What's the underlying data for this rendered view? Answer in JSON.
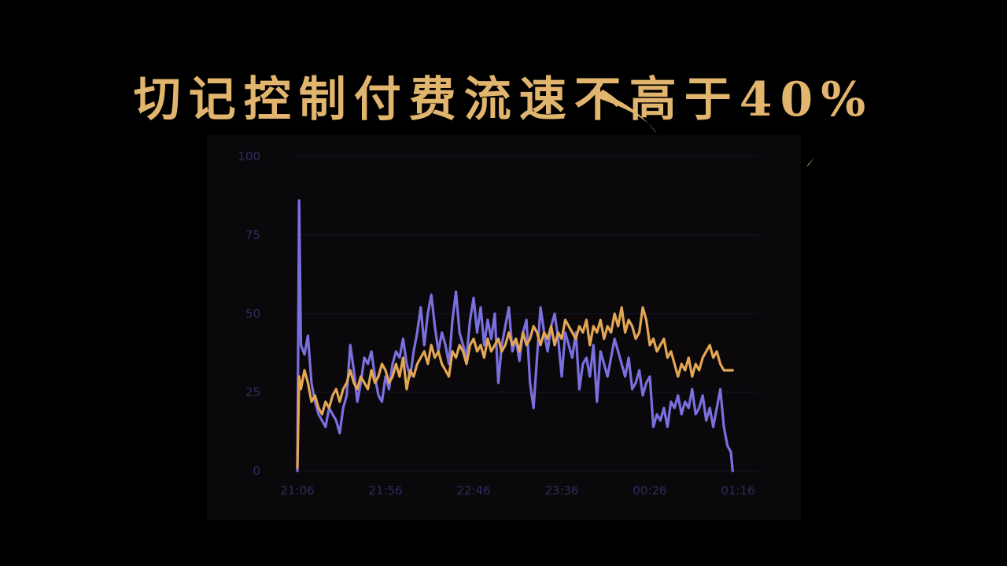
{
  "headline": "切记控制付费流速不高于40%",
  "colors": {
    "headline": "#e2b56e",
    "series_a": "#7a70de",
    "series_b": "#e3a755",
    "axis_text": "#2a2d5a"
  },
  "chart_data": {
    "type": "line",
    "title": "",
    "xlabel": "",
    "ylabel": "",
    "ylim": [
      0,
      100
    ],
    "y_ticks": [
      0,
      25,
      50,
      75,
      100
    ],
    "x_ticks": [
      "21:06",
      "21:56",
      "22:46",
      "23:36",
      "00:26",
      "01:16"
    ],
    "grid": true,
    "legend": "none",
    "series": [
      {
        "color": "#7a70de",
        "points": [
          [
            "21:06",
            0
          ],
          [
            "21:07",
            86
          ],
          [
            "21:08",
            40
          ],
          [
            "21:10",
            37
          ],
          [
            "21:12",
            43
          ],
          [
            "21:14",
            28
          ],
          [
            "21:16",
            22
          ],
          [
            "21:18",
            18
          ],
          [
            "21:20",
            16
          ],
          [
            "21:22",
            14
          ],
          [
            "21:24",
            20
          ],
          [
            "21:26",
            18
          ],
          [
            "21:28",
            16
          ],
          [
            "21:30",
            12
          ],
          [
            "21:32",
            20
          ],
          [
            "21:34",
            24
          ],
          [
            "21:36",
            40
          ],
          [
            "21:38",
            32
          ],
          [
            "21:40",
            22
          ],
          [
            "21:42",
            28
          ],
          [
            "21:44",
            36
          ],
          [
            "21:46",
            34
          ],
          [
            "21:48",
            38
          ],
          [
            "21:50",
            30
          ],
          [
            "21:52",
            24
          ],
          [
            "21:54",
            22
          ],
          [
            "21:56",
            30
          ],
          [
            "21:58",
            26
          ],
          [
            "22:00",
            34
          ],
          [
            "22:02",
            38
          ],
          [
            "22:04",
            36
          ],
          [
            "22:06",
            42
          ],
          [
            "22:08",
            34
          ],
          [
            "22:10",
            30
          ],
          [
            "22:12",
            38
          ],
          [
            "22:14",
            44
          ],
          [
            "22:16",
            52
          ],
          [
            "22:18",
            40
          ],
          [
            "22:20",
            50
          ],
          [
            "22:22",
            56
          ],
          [
            "22:24",
            46
          ],
          [
            "22:26",
            38
          ],
          [
            "22:28",
            44
          ],
          [
            "22:30",
            40
          ],
          [
            "22:32",
            34
          ],
          [
            "22:34",
            48
          ],
          [
            "22:36",
            57
          ],
          [
            "22:38",
            44
          ],
          [
            "22:40",
            40
          ],
          [
            "22:42",
            36
          ],
          [
            "22:44",
            48
          ],
          [
            "22:46",
            55
          ],
          [
            "22:48",
            44
          ],
          [
            "22:50",
            52
          ],
          [
            "22:52",
            40
          ],
          [
            "22:54",
            48
          ],
          [
            "22:56",
            42
          ],
          [
            "22:58",
            50
          ],
          [
            "23:00",
            28
          ],
          [
            "23:02",
            40
          ],
          [
            "23:04",
            46
          ],
          [
            "23:06",
            52
          ],
          [
            "23:08",
            38
          ],
          [
            "23:10",
            42
          ],
          [
            "23:12",
            35
          ],
          [
            "23:14",
            44
          ],
          [
            "23:16",
            48
          ],
          [
            "23:18",
            28
          ],
          [
            "23:20",
            20
          ],
          [
            "23:22",
            36
          ],
          [
            "23:24",
            52
          ],
          [
            "23:26",
            44
          ],
          [
            "23:28",
            38
          ],
          [
            "23:30",
            46
          ],
          [
            "23:32",
            50
          ],
          [
            "23:34",
            42
          ],
          [
            "23:36",
            30
          ],
          [
            "23:38",
            44
          ],
          [
            "23:40",
            40
          ],
          [
            "23:42",
            36
          ],
          [
            "23:44",
            44
          ],
          [
            "23:46",
            26
          ],
          [
            "23:48",
            34
          ],
          [
            "23:50",
            36
          ],
          [
            "23:52",
            30
          ],
          [
            "23:54",
            40
          ],
          [
            "23:56",
            22
          ],
          [
            "23:58",
            38
          ],
          [
            "00:00",
            34
          ],
          [
            "00:02",
            30
          ],
          [
            "00:04",
            36
          ],
          [
            "00:06",
            42
          ],
          [
            "00:08",
            38
          ],
          [
            "00:10",
            34
          ],
          [
            "00:12",
            30
          ],
          [
            "00:14",
            36
          ],
          [
            "00:16",
            26
          ],
          [
            "00:18",
            28
          ],
          [
            "00:20",
            32
          ],
          [
            "00:22",
            24
          ],
          [
            "00:24",
            28
          ],
          [
            "00:26",
            30
          ],
          [
            "00:28",
            14
          ],
          [
            "00:30",
            18
          ],
          [
            "00:32",
            16
          ],
          [
            "00:34",
            20
          ],
          [
            "00:36",
            14
          ],
          [
            "00:38",
            22
          ],
          [
            "00:40",
            20
          ],
          [
            "00:42",
            24
          ],
          [
            "00:44",
            18
          ],
          [
            "00:46",
            22
          ],
          [
            "00:48",
            20
          ],
          [
            "00:50",
            26
          ],
          [
            "00:52",
            18
          ],
          [
            "00:54",
            20
          ],
          [
            "00:56",
            24
          ],
          [
            "00:58",
            16
          ],
          [
            "01:00",
            20
          ],
          [
            "01:02",
            14
          ],
          [
            "01:04",
            20
          ],
          [
            "01:06",
            26
          ],
          [
            "01:08",
            14
          ],
          [
            "01:10",
            8
          ],
          [
            "01:12",
            6
          ],
          [
            "01:13",
            0
          ]
        ]
      },
      {
        "color": "#e3a755",
        "points": [
          [
            "21:06",
            1
          ],
          [
            "21:07",
            30
          ],
          [
            "21:08",
            26
          ],
          [
            "21:10",
            32
          ],
          [
            "21:12",
            28
          ],
          [
            "21:14",
            22
          ],
          [
            "21:16",
            24
          ],
          [
            "21:18",
            20
          ],
          [
            "21:20",
            18
          ],
          [
            "21:22",
            22
          ],
          [
            "21:24",
            20
          ],
          [
            "21:26",
            24
          ],
          [
            "21:28",
            26
          ],
          [
            "21:30",
            22
          ],
          [
            "21:32",
            26
          ],
          [
            "21:34",
            28
          ],
          [
            "21:36",
            32
          ],
          [
            "21:38",
            28
          ],
          [
            "21:40",
            26
          ],
          [
            "21:42",
            30
          ],
          [
            "21:44",
            28
          ],
          [
            "21:46",
            26
          ],
          [
            "21:48",
            32
          ],
          [
            "21:50",
            28
          ],
          [
            "21:52",
            30
          ],
          [
            "21:54",
            34
          ],
          [
            "21:56",
            32
          ],
          [
            "21:58",
            28
          ],
          [
            "22:00",
            30
          ],
          [
            "22:02",
            34
          ],
          [
            "22:04",
            30
          ],
          [
            "22:06",
            36
          ],
          [
            "22:08",
            26
          ],
          [
            "22:10",
            32
          ],
          [
            "22:12",
            30
          ],
          [
            "22:14",
            34
          ],
          [
            "22:16",
            36
          ],
          [
            "22:18",
            38
          ],
          [
            "22:20",
            34
          ],
          [
            "22:22",
            40
          ],
          [
            "22:24",
            36
          ],
          [
            "22:26",
            38
          ],
          [
            "22:28",
            34
          ],
          [
            "22:30",
            32
          ],
          [
            "22:32",
            30
          ],
          [
            "22:34",
            38
          ],
          [
            "22:36",
            36
          ],
          [
            "22:38",
            40
          ],
          [
            "22:40",
            38
          ],
          [
            "22:42",
            34
          ],
          [
            "22:44",
            40
          ],
          [
            "22:46",
            42
          ],
          [
            "22:48",
            38
          ],
          [
            "22:50",
            40
          ],
          [
            "22:52",
            36
          ],
          [
            "22:54",
            42
          ],
          [
            "22:56",
            38
          ],
          [
            "22:58",
            40
          ],
          [
            "23:00",
            42
          ],
          [
            "23:02",
            38
          ],
          [
            "23:04",
            40
          ],
          [
            "23:06",
            44
          ],
          [
            "23:08",
            40
          ],
          [
            "23:10",
            42
          ],
          [
            "23:12",
            38
          ],
          [
            "23:14",
            44
          ],
          [
            "23:16",
            40
          ],
          [
            "23:18",
            42
          ],
          [
            "23:20",
            46
          ],
          [
            "23:22",
            44
          ],
          [
            "23:24",
            40
          ],
          [
            "23:26",
            44
          ],
          [
            "23:28",
            42
          ],
          [
            "23:30",
            46
          ],
          [
            "23:32",
            40
          ],
          [
            "23:34",
            44
          ],
          [
            "23:36",
            42
          ],
          [
            "23:38",
            48
          ],
          [
            "23:40",
            46
          ],
          [
            "23:42",
            44
          ],
          [
            "23:44",
            42
          ],
          [
            "23:46",
            46
          ],
          [
            "23:48",
            44
          ],
          [
            "23:50",
            48
          ],
          [
            "23:52",
            40
          ],
          [
            "23:54",
            46
          ],
          [
            "23:56",
            44
          ],
          [
            "23:58",
            48
          ],
          [
            "00:00",
            42
          ],
          [
            "00:02",
            46
          ],
          [
            "00:04",
            44
          ],
          [
            "00:06",
            50
          ],
          [
            "00:08",
            46
          ],
          [
            "00:10",
            52
          ],
          [
            "00:12",
            44
          ],
          [
            "00:14",
            48
          ],
          [
            "00:16",
            46
          ],
          [
            "00:18",
            42
          ],
          [
            "00:20",
            44
          ],
          [
            "00:22",
            52
          ],
          [
            "00:24",
            48
          ],
          [
            "00:26",
            40
          ],
          [
            "00:28",
            42
          ],
          [
            "00:30",
            38
          ],
          [
            "00:32",
            40
          ],
          [
            "00:34",
            42
          ],
          [
            "00:36",
            36
          ],
          [
            "00:38",
            38
          ],
          [
            "00:40",
            34
          ],
          [
            "00:42",
            30
          ],
          [
            "00:44",
            34
          ],
          [
            "00:46",
            32
          ],
          [
            "00:48",
            36
          ],
          [
            "00:50",
            30
          ],
          [
            "00:52",
            34
          ],
          [
            "00:54",
            32
          ],
          [
            "00:56",
            36
          ],
          [
            "00:58",
            38
          ],
          [
            "01:00",
            40
          ],
          [
            "01:02",
            36
          ],
          [
            "01:04",
            38
          ],
          [
            "01:06",
            34
          ],
          [
            "01:08",
            32
          ],
          [
            "01:10",
            32
          ],
          [
            "01:13",
            32
          ]
        ]
      }
    ]
  }
}
